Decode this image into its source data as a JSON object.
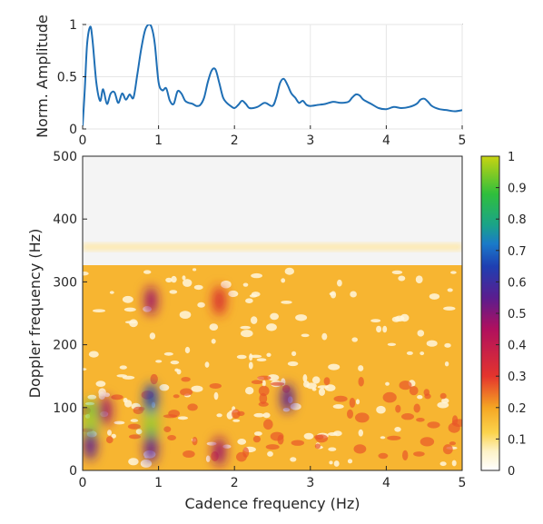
{
  "chart_data": [
    {
      "type": "line",
      "title": "",
      "xlabel": "",
      "ylabel": "Norm. Amplitude",
      "xlim": [
        0,
        5
      ],
      "ylim": [
        0,
        1
      ],
      "xticks": [
        "0",
        "1",
        "2",
        "3",
        "4",
        "5"
      ],
      "yticks": [
        "0",
        "0.5",
        "1"
      ],
      "grid": true,
      "color": "#1f6fb5",
      "series": [
        {
          "x": [
            0,
            0.03,
            0.06,
            0.1,
            0.13,
            0.18,
            0.23,
            0.27,
            0.32,
            0.37,
            0.42,
            0.47,
            0.52,
            0.57,
            0.62,
            0.67,
            0.72,
            0.77,
            0.82,
            0.87,
            0.91,
            0.95,
            1.0,
            1.05,
            1.1,
            1.15,
            1.2,
            1.25,
            1.3,
            1.35,
            1.4,
            1.45,
            1.5,
            1.55,
            1.6,
            1.65,
            1.7,
            1.75,
            1.8,
            1.85,
            1.9,
            1.95,
            2.0,
            2.05,
            2.1,
            2.15,
            2.2,
            2.3,
            2.4,
            2.5,
            2.55,
            2.6,
            2.65,
            2.7,
            2.75,
            2.8,
            2.85,
            2.9,
            2.95,
            3.0,
            3.1,
            3.2,
            3.3,
            3.4,
            3.5,
            3.55,
            3.6,
            3.65,
            3.7,
            3.8,
            3.9,
            4.0,
            4.1,
            4.2,
            4.3,
            4.4,
            4.45,
            4.5,
            4.55,
            4.6,
            4.7,
            4.8,
            4.9,
            5.0
          ],
          "y": [
            0.03,
            0.4,
            0.82,
            0.98,
            0.85,
            0.45,
            0.27,
            0.38,
            0.24,
            0.34,
            0.35,
            0.25,
            0.34,
            0.28,
            0.33,
            0.3,
            0.52,
            0.76,
            0.94,
            1.0,
            0.97,
            0.82,
            0.45,
            0.37,
            0.39,
            0.27,
            0.24,
            0.36,
            0.34,
            0.27,
            0.25,
            0.24,
            0.22,
            0.23,
            0.3,
            0.45,
            0.56,
            0.57,
            0.44,
            0.3,
            0.25,
            0.22,
            0.2,
            0.23,
            0.27,
            0.24,
            0.2,
            0.21,
            0.25,
            0.22,
            0.3,
            0.44,
            0.48,
            0.42,
            0.34,
            0.3,
            0.25,
            0.27,
            0.23,
            0.22,
            0.23,
            0.24,
            0.26,
            0.25,
            0.26,
            0.3,
            0.33,
            0.32,
            0.28,
            0.24,
            0.2,
            0.19,
            0.21,
            0.2,
            0.21,
            0.24,
            0.28,
            0.29,
            0.26,
            0.22,
            0.19,
            0.18,
            0.17,
            0.18
          ]
        }
      ]
    },
    {
      "type": "heatmap",
      "title": "",
      "xlabel": "Cadence frequency (Hz)",
      "ylabel": "Doppler frequency (Hz)",
      "xlim": [
        0,
        5
      ],
      "ylim": [
        0,
        500
      ],
      "xticks": [
        "0",
        "1",
        "2",
        "3",
        "4",
        "5"
      ],
      "yticks": [
        "0",
        "100",
        "200",
        "300",
        "400",
        "500"
      ],
      "colormap": "parula-like (white-yellow-orange-red-purple-blue-green-lime)",
      "colorbar": {
        "range": [
          0,
          1
        ],
        "ticks": [
          "0",
          "0.1",
          "0.2",
          "0.3",
          "0.4",
          "0.5",
          "0.6",
          "0.7",
          "0.8",
          "0.9",
          "1"
        ]
      },
      "hotspots": [
        {
          "x": 0.1,
          "y": 80,
          "value": 0.85
        },
        {
          "x": 0.1,
          "y": 40,
          "value": 0.55
        },
        {
          "x": 0.3,
          "y": 95,
          "value": 0.45
        },
        {
          "x": 0.9,
          "y": 80,
          "value": 0.8
        },
        {
          "x": 0.9,
          "y": 115,
          "value": 0.65
        },
        {
          "x": 0.9,
          "y": 35,
          "value": 0.55
        },
        {
          "x": 0.9,
          "y": 270,
          "value": 0.45
        },
        {
          "x": 1.8,
          "y": 30,
          "value": 0.45
        },
        {
          "x": 1.8,
          "y": 270,
          "value": 0.3
        },
        {
          "x": 2.7,
          "y": 115,
          "value": 0.5
        }
      ]
    }
  ]
}
